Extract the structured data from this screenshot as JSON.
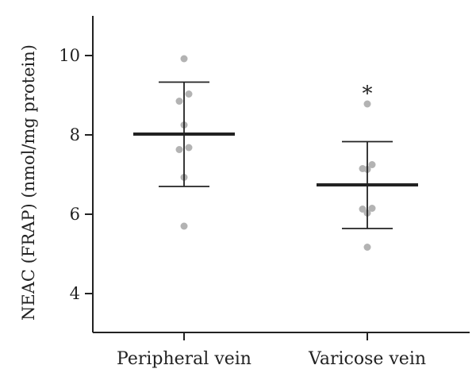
{
  "chart_data": {
    "type": "scatter",
    "ylabel": "NEAC (FRAP) (nmol/mg protein)",
    "ylim": [
      3.0,
      11.0
    ],
    "yticks": [
      4,
      6,
      8,
      10
    ],
    "categories": [
      "Peripheral vein",
      "Varicose vein"
    ],
    "groups": [
      {
        "category": "Peripheral vein",
        "points": [
          9.92,
          9.03,
          8.85,
          8.25,
          7.68,
          7.63,
          6.93,
          5.7
        ],
        "mean": 8.02,
        "error_low": 6.7,
        "error_high": 9.33,
        "annotation": ""
      },
      {
        "category": "Varicose vein",
        "points": [
          8.78,
          7.25,
          7.15,
          7.13,
          6.15,
          6.13,
          6.03,
          5.17
        ],
        "mean": 6.74,
        "error_low": 5.64,
        "error_high": 7.83,
        "annotation": "*"
      }
    ],
    "colors": {
      "points": "#b3b3b3",
      "lines": "#222222"
    }
  }
}
